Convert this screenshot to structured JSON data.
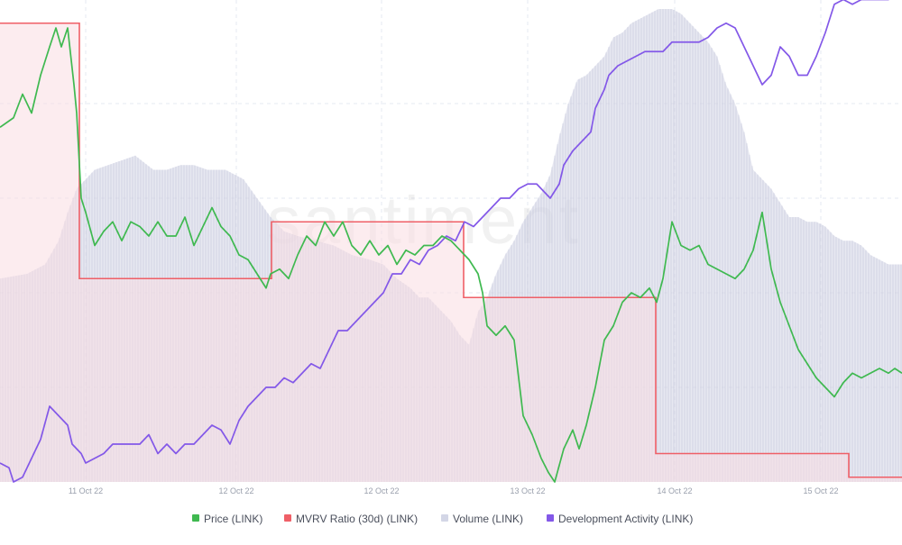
{
  "watermark": "santiment",
  "colors": {
    "price": "#3fb950",
    "mvrv": "#ef5f67",
    "volume": "#d3d6e6",
    "dev_activity": "#8358e8",
    "mvrv_fill": "#f9dde2",
    "grid": "#e6e8f0"
  },
  "chart_data": {
    "type": "line",
    "x_range": [
      0,
      100
    ],
    "x_ticks": [
      {
        "x": 9.5,
        "label": "11 Oct 22"
      },
      {
        "x": 26.2,
        "label": "12 Oct 22"
      },
      {
        "x": 42.3,
        "label": "12 Oct 22"
      },
      {
        "x": 58.5,
        "label": "13 Oct 22"
      },
      {
        "x": 74.8,
        "label": "14 Oct 22"
      },
      {
        "x": 91.0,
        "label": "15 Oct 22"
      }
    ],
    "grid": true,
    "legend_position": "bottom",
    "series": [
      {
        "name": "Price (LINK)",
        "style": "line",
        "color": "#3fb950",
        "y_range": [
          0,
          100
        ],
        "points": [
          [
            0,
            75
          ],
          [
            1.5,
            77
          ],
          [
            2.5,
            82
          ],
          [
            3.5,
            78
          ],
          [
            4.5,
            86
          ],
          [
            5.5,
            92
          ],
          [
            6.2,
            96
          ],
          [
            6.8,
            92
          ],
          [
            7.5,
            96
          ],
          [
            8.2,
            84
          ],
          [
            8.5,
            78
          ],
          [
            9.0,
            60
          ],
          [
            9.5,
            57
          ],
          [
            10.5,
            50
          ],
          [
            11.5,
            53
          ],
          [
            12.5,
            55
          ],
          [
            13.5,
            51
          ],
          [
            14.5,
            55
          ],
          [
            15.5,
            54
          ],
          [
            16.5,
            52
          ],
          [
            17.5,
            55
          ],
          [
            18.5,
            52
          ],
          [
            19.5,
            52
          ],
          [
            20.5,
            56
          ],
          [
            21.5,
            50
          ],
          [
            22.5,
            54
          ],
          [
            23.5,
            58
          ],
          [
            24.5,
            54
          ],
          [
            25.5,
            52
          ],
          [
            26.5,
            48
          ],
          [
            27.5,
            47
          ],
          [
            28.5,
            44
          ],
          [
            29.5,
            41
          ],
          [
            30,
            44
          ],
          [
            31,
            45
          ],
          [
            32,
            43
          ],
          [
            33,
            48
          ],
          [
            34,
            52
          ],
          [
            35,
            50
          ],
          [
            36,
            55
          ],
          [
            37,
            52
          ],
          [
            38,
            55
          ],
          [
            39,
            50
          ],
          [
            40,
            48
          ],
          [
            41,
            51
          ],
          [
            42,
            48
          ],
          [
            43,
            50
          ],
          [
            44,
            46
          ],
          [
            45,
            49
          ],
          [
            46,
            48
          ],
          [
            47,
            50
          ],
          [
            48,
            50
          ],
          [
            49,
            52
          ],
          [
            50,
            51
          ],
          [
            51,
            49
          ],
          [
            52,
            47
          ],
          [
            53,
            44
          ],
          [
            53.5,
            40
          ],
          [
            54,
            33
          ],
          [
            55,
            31
          ],
          [
            56,
            33
          ],
          [
            57,
            30
          ],
          [
            57.5,
            22
          ],
          [
            58,
            14
          ],
          [
            59,
            10
          ],
          [
            60,
            5
          ],
          [
            60.8,
            2
          ],
          [
            61.5,
            0
          ],
          [
            62.5,
            7
          ],
          [
            63.5,
            11
          ],
          [
            64.2,
            7
          ],
          [
            65,
            12
          ],
          [
            66,
            20
          ],
          [
            67,
            30
          ],
          [
            68,
            33
          ],
          [
            69,
            38
          ],
          [
            70,
            40
          ],
          [
            71,
            39
          ],
          [
            72,
            41
          ],
          [
            72.8,
            38
          ],
          [
            73.5,
            43
          ],
          [
            74.5,
            55
          ],
          [
            75.5,
            50
          ],
          [
            76.5,
            49
          ],
          [
            77.5,
            50
          ],
          [
            78.5,
            46
          ],
          [
            79.5,
            45
          ],
          [
            80.5,
            44
          ],
          [
            81.5,
            43
          ],
          [
            82.5,
            45
          ],
          [
            83.5,
            49
          ],
          [
            84.5,
            57
          ],
          [
            85.5,
            45
          ],
          [
            86.5,
            38
          ],
          [
            87.5,
            33
          ],
          [
            88.5,
            28
          ],
          [
            89.5,
            25
          ],
          [
            90.5,
            22
          ],
          [
            91.5,
            20
          ],
          [
            92.5,
            18
          ],
          [
            93.5,
            21
          ],
          [
            94.5,
            23
          ],
          [
            95.5,
            22
          ],
          [
            96.5,
            23
          ],
          [
            97.5,
            24
          ],
          [
            98.5,
            23
          ],
          [
            99.2,
            24
          ],
          [
            100,
            23
          ]
        ]
      },
      {
        "name": "MVRV Ratio (30d)",
        "style": "step-area",
        "color": "#ef5f67",
        "y_range": [
          0,
          100
        ],
        "points": [
          [
            0,
            97
          ],
          [
            8.8,
            97
          ],
          [
            8.8,
            43
          ],
          [
            30.1,
            43
          ],
          [
            30.1,
            55
          ],
          [
            51.4,
            55
          ],
          [
            51.4,
            39
          ],
          [
            72.7,
            39
          ],
          [
            72.7,
            6
          ],
          [
            94.1,
            6
          ],
          [
            94.1,
            1
          ],
          [
            100,
            1
          ]
        ]
      },
      {
        "name": "Volume (LINK)",
        "style": "area",
        "color": "#d3d6e6",
        "y_range": [
          0,
          100
        ],
        "points": [
          [
            0,
            43
          ],
          [
            3,
            44
          ],
          [
            5,
            46
          ],
          [
            6.5,
            51
          ],
          [
            7.5,
            57
          ],
          [
            8.5,
            62
          ],
          [
            9.5,
            64
          ],
          [
            10.5,
            66
          ],
          [
            12,
            67
          ],
          [
            13.5,
            68
          ],
          [
            15,
            69
          ],
          [
            17,
            66
          ],
          [
            18.5,
            66
          ],
          [
            20,
            67
          ],
          [
            21.5,
            67
          ],
          [
            23,
            66
          ],
          [
            25,
            66
          ],
          [
            27,
            64
          ],
          [
            28.5,
            60
          ],
          [
            30,
            56
          ],
          [
            31.5,
            53
          ],
          [
            33,
            52
          ],
          [
            35,
            51
          ],
          [
            37,
            50
          ],
          [
            39,
            48
          ],
          [
            41,
            47
          ],
          [
            42.5,
            46
          ],
          [
            44,
            43
          ],
          [
            45.5,
            41
          ],
          [
            46.5,
            39
          ],
          [
            47.5,
            39
          ],
          [
            48.5,
            37
          ],
          [
            50,
            34
          ],
          [
            51,
            31
          ],
          [
            52,
            29
          ],
          [
            53,
            36
          ],
          [
            54,
            39
          ],
          [
            55,
            44
          ],
          [
            56,
            48
          ],
          [
            57,
            51
          ],
          [
            58,
            55
          ],
          [
            59,
            58
          ],
          [
            60,
            61
          ],
          [
            61,
            65
          ],
          [
            62,
            73
          ],
          [
            63,
            80
          ],
          [
            64,
            85
          ],
          [
            65,
            86
          ],
          [
            66,
            88
          ],
          [
            67,
            90
          ],
          [
            68,
            94
          ],
          [
            69,
            95
          ],
          [
            70,
            97
          ],
          [
            71,
            98
          ],
          [
            72,
            99
          ],
          [
            73,
            100
          ],
          [
            73.8,
            100
          ],
          [
            74.5,
            100
          ],
          [
            75.5,
            99
          ],
          [
            76.5,
            97
          ],
          [
            77.5,
            95
          ],
          [
            78.5,
            93
          ],
          [
            79.5,
            90
          ],
          [
            80.5,
            84
          ],
          [
            81.5,
            80
          ],
          [
            82.5,
            74
          ],
          [
            83.5,
            66
          ],
          [
            84.5,
            64
          ],
          [
            85.5,
            62
          ],
          [
            86.5,
            59
          ],
          [
            87.5,
            56
          ],
          [
            88.5,
            56
          ],
          [
            89.5,
            55
          ],
          [
            90.5,
            55
          ],
          [
            91.5,
            54
          ],
          [
            92.5,
            52
          ],
          [
            93.5,
            51
          ],
          [
            94.5,
            51
          ],
          [
            95.5,
            50
          ],
          [
            96.5,
            48
          ],
          [
            97.5,
            47
          ],
          [
            98.5,
            46
          ],
          [
            100,
            46
          ]
        ]
      },
      {
        "name": "Development Activity",
        "style": "line",
        "color": "#8358e8",
        "y_range": [
          0,
          100
        ],
        "points": [
          [
            0,
            4
          ],
          [
            1,
            3
          ],
          [
            1.5,
            0
          ],
          [
            2.5,
            1
          ],
          [
            3.5,
            5
          ],
          [
            4.5,
            9
          ],
          [
            5.5,
            16
          ],
          [
            6.5,
            14
          ],
          [
            7.5,
            12
          ],
          [
            8,
            8
          ],
          [
            9,
            6
          ],
          [
            9.5,
            4
          ],
          [
            10.5,
            5
          ],
          [
            11.5,
            6
          ],
          [
            12.5,
            8
          ],
          [
            13.5,
            8
          ],
          [
            14.5,
            8
          ],
          [
            15.5,
            8
          ],
          [
            16.5,
            10
          ],
          [
            17.5,
            6
          ],
          [
            18.5,
            8
          ],
          [
            19.5,
            6
          ],
          [
            20.5,
            8
          ],
          [
            21.5,
            8
          ],
          [
            22.5,
            10
          ],
          [
            23.5,
            12
          ],
          [
            24.5,
            11
          ],
          [
            25.5,
            8
          ],
          [
            26.5,
            13
          ],
          [
            27.5,
            16
          ],
          [
            28.5,
            18
          ],
          [
            29.5,
            20
          ],
          [
            30.5,
            20
          ],
          [
            31.5,
            22
          ],
          [
            32.5,
            21
          ],
          [
            33.5,
            23
          ],
          [
            34.5,
            25
          ],
          [
            35.5,
            24
          ],
          [
            36.5,
            28
          ],
          [
            37.5,
            32
          ],
          [
            38.5,
            32
          ],
          [
            39.5,
            34
          ],
          [
            40.5,
            36
          ],
          [
            41.5,
            38
          ],
          [
            42.5,
            40
          ],
          [
            43.5,
            44
          ],
          [
            44.5,
            44
          ],
          [
            45.5,
            47
          ],
          [
            46.5,
            46
          ],
          [
            47.5,
            49
          ],
          [
            48.5,
            50
          ],
          [
            49.5,
            52
          ],
          [
            50.5,
            51
          ],
          [
            51.5,
            55
          ],
          [
            52.5,
            54
          ],
          [
            53.5,
            56
          ],
          [
            54.5,
            58
          ],
          [
            55.5,
            60
          ],
          [
            56.5,
            60
          ],
          [
            57.5,
            62
          ],
          [
            58.5,
            63
          ],
          [
            59.5,
            63
          ],
          [
            60,
            62
          ],
          [
            61,
            60
          ],
          [
            62,
            63
          ],
          [
            62.5,
            67
          ],
          [
            63.5,
            70
          ],
          [
            64.5,
            72
          ],
          [
            65.5,
            74
          ],
          [
            66,
            79
          ],
          [
            67,
            83
          ],
          [
            67.5,
            86
          ],
          [
            68.5,
            88
          ],
          [
            69.5,
            89
          ],
          [
            70.5,
            90
          ],
          [
            71.5,
            91
          ],
          [
            72.5,
            91
          ],
          [
            73.5,
            91
          ],
          [
            74.5,
            93
          ],
          [
            75.5,
            93
          ],
          [
            76.5,
            93
          ],
          [
            77.5,
            93
          ],
          [
            78.5,
            94
          ],
          [
            79.5,
            96
          ],
          [
            80.5,
            97
          ],
          [
            81.5,
            96
          ],
          [
            82.5,
            92
          ],
          [
            83.5,
            88
          ],
          [
            84.5,
            84
          ],
          [
            85.5,
            86
          ],
          [
            86.5,
            92
          ],
          [
            87.5,
            90
          ],
          [
            88.5,
            86
          ],
          [
            89.5,
            86
          ],
          [
            90.5,
            90
          ],
          [
            91.5,
            95
          ],
          [
            92.5,
            101
          ],
          [
            93.5,
            102
          ],
          [
            94.5,
            101
          ],
          [
            95.5,
            102
          ],
          [
            96.5,
            102
          ],
          [
            97.5,
            102
          ],
          [
            98.5,
            102
          ],
          [
            100,
            103
          ]
        ]
      }
    ]
  },
  "legend": [
    {
      "label": "Price (LINK)",
      "color": "#3fb950"
    },
    {
      "label": "MVRV Ratio (30d) (LINK)",
      "color": "#ef5f67"
    },
    {
      "label": "Volume (LINK)",
      "color": "#d3d6e6"
    },
    {
      "label": "Development Activity (LINK)",
      "color": "#8358e8"
    }
  ]
}
